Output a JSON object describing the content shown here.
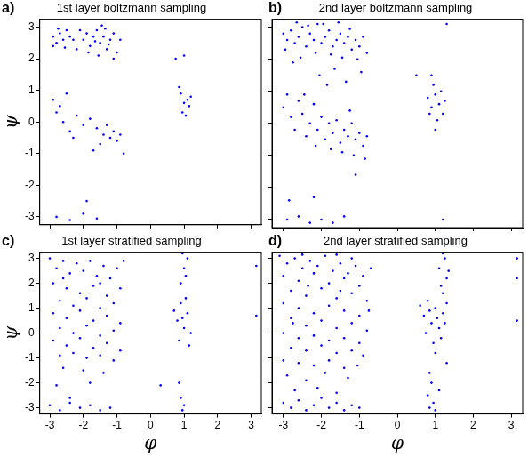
{
  "chart_data": [
    {
      "type": "scatter",
      "title": "1st layer boltzmann sampling",
      "annotations": [
        "a)"
      ],
      "y_label": "ψ",
      "xlim": [
        -3.3,
        3.3
      ],
      "ylim": [
        -3.25,
        3.25
      ],
      "xticks": [
        -3,
        -2,
        -1,
        0,
        1,
        2,
        3
      ],
      "yticks": [
        -3,
        -2,
        -1,
        0,
        1,
        2,
        3
      ],
      "grid": false,
      "tick_labels": "y",
      "color": "#0000ff",
      "marker": "circle",
      "x": [
        -2.9,
        -2.8,
        -2.7,
        -2.6,
        -2.5,
        -2.9,
        -2.4,
        -2.75,
        -2.55,
        -2.3,
        -2.0,
        -1.9,
        -1.8,
        -1.7,
        -1.6,
        -1.5,
        -1.4,
        -1.3,
        -1.2,
        -1.1,
        -1.85,
        -1.55,
        -1.35,
        -1.65,
        -1.25,
        -2.1,
        -0.9,
        -1.0,
        -2.2,
        -1.45,
        -2.9,
        -2.7,
        -2.5,
        -2.6,
        -2.4,
        -2.2,
        -2.0,
        -1.8,
        -1.6,
        -1.4,
        -1.3,
        -1.2,
        -1.1,
        -1.0,
        -0.9,
        -1.5,
        -2.3,
        -1.7,
        -0.8,
        -2.8,
        0.9,
        1.0,
        1.1,
        0.95,
        1.15,
        1.05,
        0.85,
        1.2,
        -2.8,
        -2.4,
        -2.0,
        -1.6,
        -1.9,
        0.75,
        1.0,
        -1.1
      ],
      "values": [
        2.7,
        2.5,
        2.8,
        2.6,
        2.9,
        2.4,
        2.7,
        2.95,
        2.35,
        2.6,
        2.6,
        2.8,
        2.4,
        2.7,
        2.9,
        2.5,
        2.7,
        2.3,
        2.6,
        2.8,
        2.2,
        2.1,
        2.95,
        2.55,
        2.45,
        2.9,
        2.6,
        2.2,
        2.3,
        3.05,
        0.7,
        0.5,
        0.9,
        0.0,
        -0.3,
        0.2,
        -0.1,
        0.1,
        -0.2,
        -0.4,
        -0.1,
        -0.5,
        -0.3,
        -0.6,
        -0.4,
        -0.7,
        -0.5,
        -0.9,
        -1.0,
        0.3,
        0.9,
        0.6,
        0.7,
        0.3,
        0.5,
        0.2,
        1.1,
        0.8,
        -3.0,
        -3.1,
        -2.9,
        -3.05,
        -2.5,
        2.0,
        2.1,
        2.0
      ]
    },
    {
      "type": "scatter",
      "title": "2nd layer boltzmann sampling",
      "annotations": [
        "b)"
      ],
      "xlim": [
        -3.3,
        3.3
      ],
      "ylim": [
        -3.25,
        3.25
      ],
      "xticks": [
        -3,
        -2,
        -1,
        0,
        1,
        2,
        3
      ],
      "yticks": [
        -3,
        -2,
        -1,
        0,
        1,
        2,
        3
      ],
      "grid": false,
      "tick_labels": false,
      "color": "#0000ff",
      "marker": "circle",
      "x": [
        -3.0,
        -2.9,
        -2.8,
        -2.7,
        -2.6,
        -2.5,
        -2.4,
        -2.3,
        -2.2,
        -2.1,
        -2.0,
        -1.9,
        -1.8,
        -1.7,
        -1.6,
        -1.5,
        -1.4,
        -1.3,
        -1.2,
        -1.1,
        -1.0,
        -0.9,
        -0.8,
        -2.95,
        -2.65,
        -2.35,
        -1.95,
        -1.55,
        -1.25,
        -1.75,
        -2.15,
        -1.45,
        -1.05,
        -2.55,
        -1.65,
        -2.05,
        -1.35,
        -2.75,
        -0.95,
        -1.85,
        -3.0,
        -2.9,
        -2.8,
        -2.7,
        -2.6,
        -2.5,
        -2.4,
        -2.3,
        -2.2,
        -2.1,
        -2.0,
        -1.9,
        -1.8,
        -1.7,
        -1.6,
        -1.5,
        -1.4,
        -1.3,
        -1.2,
        -1.1,
        -1.0,
        -0.9,
        -0.8,
        -1.45,
        -1.15,
        -0.85,
        -1.75,
        -2.45,
        -2.15,
        -1.25,
        0.8,
        0.9,
        1.0,
        1.1,
        1.2,
        0.95,
        1.05,
        0.85,
        1.15,
        1.0,
        1.25,
        0.9,
        -2.9,
        -2.6,
        -2.3,
        -2.0,
        -1.7,
        -1.4,
        -2.2,
        -1.1,
        0.5,
        1.2,
        1.3,
        -2.85
      ],
      "values": [
        2.8,
        2.6,
        2.9,
        2.5,
        2.7,
        3.0,
        2.4,
        2.8,
        2.6,
        3.1,
        2.5,
        2.7,
        2.9,
        2.4,
        2.6,
        2.8,
        2.5,
        2.7,
        2.3,
        2.6,
        2.4,
        2.7,
        2.2,
        2.3,
        3.15,
        3.05,
        3.1,
        3.15,
        2.95,
        2.15,
        2.2,
        2.05,
        2.0,
        2.05,
        1.7,
        1.5,
        1.3,
        1.9,
        1.6,
        1.2,
        0.5,
        0.9,
        0.2,
        -0.2,
        0.7,
        0.3,
        -0.4,
        0.0,
        0.6,
        -0.2,
        0.2,
        -0.5,
        0.0,
        -0.3,
        0.1,
        -0.6,
        -0.2,
        -0.4,
        0.0,
        -0.5,
        -0.3,
        -0.7,
        -0.4,
        -0.9,
        -1.0,
        -1.1,
        -0.8,
        0.9,
        -0.7,
        0.4,
        0.8,
        0.5,
        0.9,
        0.6,
        0.3,
        1.2,
        0.1,
        0.3,
        1.0,
        -0.2,
        0.7,
        1.5,
        -3.0,
        -2.9,
        -3.1,
        -3.0,
        -3.1,
        -2.9,
        -2.3,
        -1.6,
        1.5,
        -3.0,
        3.1,
        -2.4
      ]
    },
    {
      "type": "scatter",
      "title": "1st layer stratified sampling",
      "annotations": [
        "c)"
      ],
      "x_label": "φ",
      "y_label": "ψ",
      "xlim": [
        -3.3,
        3.3
      ],
      "ylim": [
        -3.25,
        3.25
      ],
      "xticks": [
        -3,
        -2,
        -1,
        0,
        1,
        2,
        3
      ],
      "yticks": [
        -3,
        -2,
        -1,
        0,
        1,
        2,
        3
      ],
      "grid": false,
      "tick_labels": true,
      "color": "#0000ff",
      "marker": "circle",
      "x": [
        -3.0,
        -2.8,
        -2.6,
        -2.4,
        -2.2,
        -2.0,
        -1.8,
        -1.6,
        -1.4,
        -1.2,
        -1.0,
        -2.9,
        -2.5,
        -2.1,
        -1.7,
        -1.3,
        -0.9,
        -2.7,
        -2.3,
        -1.9,
        -1.5,
        -1.1,
        -2.9,
        -2.5,
        -2.1,
        -1.7,
        -1.3,
        -0.9,
        -2.7,
        -2.3,
        -1.9,
        -1.5,
        -1.1,
        -2.9,
        -2.5,
        -2.1,
        -1.7,
        -1.3,
        -0.9,
        -2.7,
        -2.3,
        -1.9,
        -1.5,
        -1.1,
        -2.6,
        -2.0,
        -1.4,
        -2.8,
        -1.8,
        -2.4,
        -3.0,
        -2.7,
        -2.4,
        -2.1,
        -1.8,
        -1.5,
        -1.2,
        -2.6,
        -1.5,
        -0.8,
        0.7,
        0.8,
        0.9,
        1.0,
        1.1,
        1.2,
        0.85,
        1.05,
        0.95,
        1.15,
        0.9,
        1.0,
        1.1,
        0.95,
        1.05,
        0.85,
        0.9,
        1.0,
        0.95,
        0.3,
        3.15,
        3.15
      ],
      "values": [
        3.0,
        2.6,
        2.9,
        2.4,
        2.8,
        2.5,
        2.9,
        2.3,
        2.7,
        2.2,
        2.6,
        2.0,
        1.8,
        1.6,
        1.9,
        1.5,
        1.8,
        1.3,
        1.1,
        1.4,
        1.0,
        1.2,
        0.8,
        0.6,
        0.9,
        0.5,
        0.7,
        0.4,
        0.2,
        0.0,
        0.3,
        -0.1,
        0.1,
        -0.3,
        -0.5,
        -0.2,
        -0.6,
        -0.4,
        -0.7,
        -0.9,
        -0.8,
        -1.0,
        -0.9,
        -1.1,
        -1.4,
        -1.5,
        -1.6,
        -2.1,
        -2.0,
        -2.6,
        -2.9,
        -3.1,
        -2.8,
        -3.0,
        -2.9,
        -3.1,
        -3.0,
        2.2,
        2.0,
        2.9,
        0.9,
        0.5,
        1.2,
        0.2,
        0.8,
        0.0,
        -0.3,
        1.4,
        0.6,
        -0.5,
        2.0,
        2.6,
        3.0,
        3.2,
        2.3,
        -2.0,
        -2.6,
        -2.9,
        -3.1,
        -2.1,
        2.7,
        0.7
      ]
    },
    {
      "type": "scatter",
      "title": "2nd layer stratified sampling",
      "annotations": [
        "d)"
      ],
      "x_label": "φ",
      "xlim": [
        -3.3,
        3.3
      ],
      "ylim": [
        -3.25,
        3.25
      ],
      "xticks": [
        -3,
        -2,
        -1,
        0,
        1,
        2,
        3
      ],
      "yticks": [
        -3,
        -2,
        -1,
        0,
        1,
        2,
        3
      ],
      "grid": false,
      "tick_labels": "x",
      "color": "#0000ff",
      "marker": "circle",
      "x": [
        -3.1,
        -2.9,
        -2.7,
        -2.5,
        -2.3,
        -2.1,
        -1.9,
        -1.7,
        -1.5,
        -1.3,
        -1.1,
        -0.9,
        -3.0,
        -2.6,
        -2.2,
        -1.8,
        -1.4,
        -1.0,
        -2.8,
        -2.4,
        -2.0,
        -1.6,
        -1.2,
        -0.8,
        -3.0,
        -2.6,
        -2.2,
        -1.8,
        -1.4,
        -1.0,
        -2.8,
        -2.4,
        -2.0,
        -1.6,
        -1.2,
        -0.8,
        -3.0,
        -2.6,
        -2.2,
        -1.8,
        -1.4,
        -1.0,
        -2.8,
        -2.4,
        -2.0,
        -1.6,
        -1.2,
        -0.9,
        -3.0,
        -2.6,
        -2.2,
        -1.8,
        -1.4,
        -2.9,
        -2.4,
        -1.9,
        -1.3,
        -2.7,
        -2.1,
        -1.6,
        -3.0,
        -2.8,
        -2.6,
        -2.4,
        -2.2,
        -2.0,
        -1.8,
        -1.6,
        -1.4,
        -1.2,
        -1.0,
        -2.5,
        -1.6,
        -1.2,
        -0.7,
        -2.75,
        -1.5,
        -2.35,
        -1.05,
        -0.75,
        0.6,
        0.7,
        0.8,
        0.9,
        1.0,
        1.1,
        1.2,
        1.3,
        0.75,
        0.95,
        1.05,
        1.15,
        0.85,
        1.25,
        1.0,
        1.2,
        1.3,
        1.1,
        1.25,
        1.2,
        1.35,
        1.15,
        0.85,
        0.9,
        0.8,
        0.95,
        1.0,
        0.85,
        1.3,
        1.1,
        3.15,
        3.15,
        3.15
      ],
      "values": [
        3.1,
        2.8,
        3.0,
        2.6,
        2.9,
        2.7,
        3.1,
        2.5,
        2.8,
        2.4,
        2.7,
        2.3,
        2.3,
        2.1,
        2.4,
        2.0,
        2.2,
        1.9,
        1.7,
        1.5,
        1.8,
        1.4,
        1.6,
        1.3,
        1.2,
        1.0,
        0.8,
        1.1,
        0.9,
        0.7,
        0.6,
        0.3,
        0.5,
        0.2,
        0.4,
        0.1,
        0.0,
        -0.2,
        -0.1,
        -0.3,
        -0.2,
        -0.4,
        -0.6,
        -0.7,
        -0.5,
        -0.8,
        -0.7,
        -0.9,
        -1.1,
        -1.2,
        -1.3,
        -1.1,
        -1.4,
        -1.7,
        -1.9,
        -1.6,
        -1.8,
        -2.3,
        -2.2,
        -2.4,
        -2.8,
        -3.0,
        -2.7,
        -3.1,
        -2.9,
        -2.6,
        -3.0,
        -2.8,
        -3.1,
        -2.9,
        -3.0,
        3.15,
        3.15,
        3.0,
        2.6,
        0.4,
        1.7,
        1.9,
        -1.3,
        0.9,
        1.1,
        0.7,
        1.3,
        0.4,
        1.0,
        0.2,
        0.8,
        1.2,
        0.0,
        -0.4,
        0.6,
        -0.2,
        0.9,
        0.4,
        -0.8,
        1.6,
        2.2,
        2.6,
        3.0,
        3.2,
        2.5,
        1.9,
        -1.6,
        -2.0,
        -2.5,
        -2.8,
        -3.1,
        -3.0,
        -1.2,
        -2.3,
        2.2,
        3.0,
        0.5
      ]
    }
  ]
}
